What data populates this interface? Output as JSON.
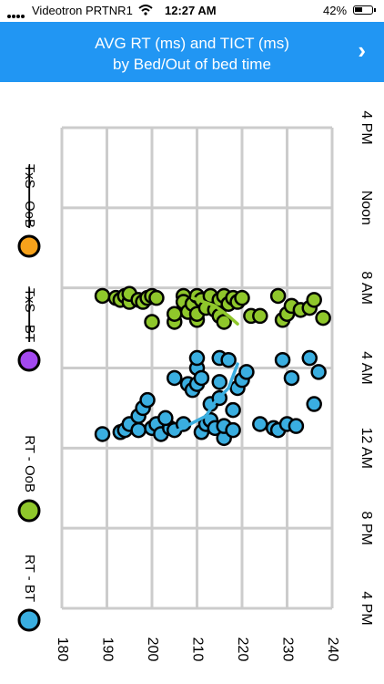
{
  "status_bar": {
    "carrier": "Videotron PRTNR1",
    "time": "12:27 AM",
    "battery": "42%"
  },
  "header": {
    "title_line1": "AVG RT (ms) and TICT (ms)",
    "title_line2": "by Bed/Out of bed time",
    "next_icon": "chevron-right-icon",
    "background": "#2196f3"
  },
  "chart_data": {
    "type": "scatter",
    "title": "AVG RT (ms) and TICT (ms) by Bed/Out of bed time",
    "orientation": "rotated",
    "value_axis": {
      "ticks": [
        "180",
        "190",
        "200",
        "210",
        "220",
        "230",
        "240"
      ],
      "range": [
        180,
        240
      ]
    },
    "time_axis": {
      "ticks": [
        "4 PM",
        "8 PM",
        "12 AM",
        "4 AM",
        "8 AM",
        "Noon",
        "4 PM"
      ],
      "range_hours": [
        16,
        40
      ]
    },
    "grid": true,
    "legend": {
      "placement": "left",
      "entries": [
        {
          "label": "RT - BT",
          "color": "#3aaee0",
          "struck": false
        },
        {
          "label": "RT - OoB",
          "color": "#8fc72b",
          "struck": false
        },
        {
          "label": "TxS - BT",
          "color": "#a349f0",
          "struck": true
        },
        {
          "label": "TxS - OoB",
          "color": "#f7a21b",
          "struck": true
        }
      ]
    },
    "series": [
      {
        "name": "RT - BT",
        "color": "#3aaee0",
        "points": [
          [
            189,
            24.7
          ],
          [
            193,
            24.8
          ],
          [
            194,
            24.9
          ],
          [
            195,
            25.2
          ],
          [
            197,
            25.6
          ],
          [
            198,
            26.0
          ],
          [
            199,
            26.4
          ],
          [
            200,
            25.0
          ],
          [
            201,
            25.2
          ],
          [
            202,
            24.7
          ],
          [
            204,
            25.0
          ],
          [
            205,
            24.9
          ],
          [
            205,
            27.5
          ],
          [
            207,
            25.2
          ],
          [
            208,
            27.2
          ],
          [
            209,
            26.9
          ],
          [
            210,
            27.2
          ],
          [
            210,
            28.0
          ],
          [
            210,
            28.5
          ],
          [
            211,
            27.5
          ],
          [
            211,
            24.8
          ],
          [
            212,
            25.2
          ],
          [
            213,
            25.4
          ],
          [
            213,
            26.2
          ],
          [
            214,
            25.0
          ],
          [
            215,
            26.5
          ],
          [
            215,
            27.3
          ],
          [
            215,
            28.5
          ],
          [
            216,
            24.5
          ],
          [
            216,
            25.1
          ],
          [
            217,
            28.4
          ],
          [
            218,
            25.9
          ],
          [
            218,
            24.9
          ],
          [
            219,
            27.0
          ],
          [
            220,
            27.4
          ],
          [
            221,
            27.8
          ],
          [
            224,
            25.2
          ],
          [
            227,
            25.0
          ],
          [
            228,
            24.9
          ],
          [
            229,
            28.4
          ],
          [
            230,
            25.2
          ],
          [
            231,
            27.5
          ],
          [
            232,
            25.1
          ],
          [
            235,
            28.5
          ],
          [
            236,
            26.2
          ],
          [
            237,
            27.8
          ],
          [
            197,
            24.9
          ],
          [
            203,
            25.5
          ]
        ]
      },
      {
        "name": "RT - OoB",
        "color": "#8fc72b",
        "points": [
          [
            189,
            31.6
          ],
          [
            192,
            31.5
          ],
          [
            193,
            31.4
          ],
          [
            194,
            31.6
          ],
          [
            195,
            31.3
          ],
          [
            195,
            31.7
          ],
          [
            197,
            31.4
          ],
          [
            198,
            31.3
          ],
          [
            199,
            31.5
          ],
          [
            200,
            31.6
          ],
          [
            201,
            31.5
          ],
          [
            200,
            30.3
          ],
          [
            205,
            30.3
          ],
          [
            205,
            30.7
          ],
          [
            207,
            31.6
          ],
          [
            207,
            31.3
          ],
          [
            208,
            30.8
          ],
          [
            209,
            31.2
          ],
          [
            210,
            31.6
          ],
          [
            210,
            30.4
          ],
          [
            210,
            30.7
          ],
          [
            211,
            31.4
          ],
          [
            212,
            31.0
          ],
          [
            213,
            31.6
          ],
          [
            214,
            30.9
          ],
          [
            215,
            31.4
          ],
          [
            215,
            30.6
          ],
          [
            216,
            31.6
          ],
          [
            216,
            30.3
          ],
          [
            217,
            31.2
          ],
          [
            218,
            31.5
          ],
          [
            219,
            31.3
          ],
          [
            220,
            31.5
          ],
          [
            222,
            30.6
          ],
          [
            224,
            30.6
          ],
          [
            228,
            31.6
          ],
          [
            229,
            30.4
          ],
          [
            230,
            30.7
          ],
          [
            231,
            31.1
          ],
          [
            233,
            30.9
          ],
          [
            235,
            31.0
          ],
          [
            236,
            31.4
          ],
          [
            238,
            30.5
          ]
        ]
      }
    ],
    "trend_lines": [
      {
        "series": "RT - BT",
        "color": "#3aaee0",
        "points": [
          [
            205,
            24.8
          ],
          [
            212,
            25.6
          ],
          [
            214,
            26.3
          ],
          [
            217,
            27.0
          ],
          [
            219,
            28.2
          ]
        ]
      },
      {
        "series": "RT - OoB",
        "color": "#8fc72b",
        "points": [
          [
            209,
            31.5
          ],
          [
            214,
            31.1
          ],
          [
            217,
            30.6
          ],
          [
            219,
            30.2
          ]
        ]
      }
    ]
  }
}
